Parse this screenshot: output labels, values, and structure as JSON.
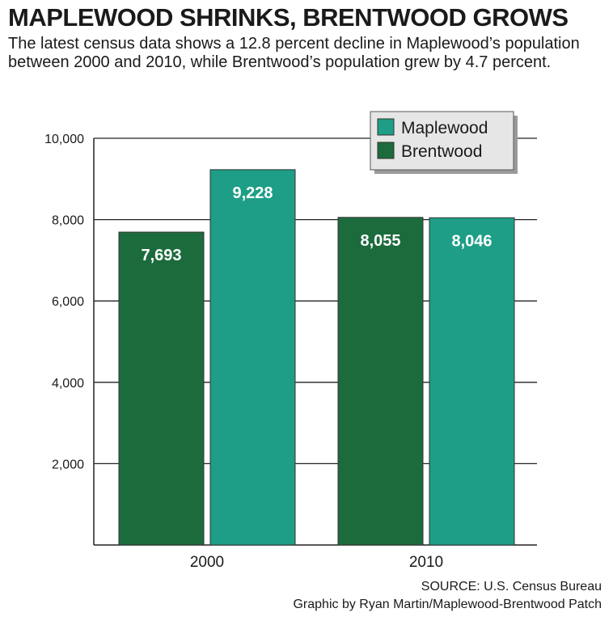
{
  "header": {
    "title": "MAPLEWOOD SHRINKS, BRENTWOOD GROWS",
    "subtitle": "The latest census data shows a 12.8 percent decline in Maplewood’s population between 2000 and 2010, while Brentwood’s population grew by 4.7 percent."
  },
  "footer": {
    "source": "SOURCE: U.S. Census Bureau",
    "credit": "Graphic by Ryan Martin/Maplewood-Brentwood Patch"
  },
  "chart_data": {
    "type": "bar",
    "title": "",
    "xlabel": "",
    "ylabel": "",
    "categories": [
      "2000",
      "2010"
    ],
    "ylim": [
      0,
      10000
    ],
    "yticks": [
      2000,
      4000,
      6000,
      8000,
      10000
    ],
    "ytick_labels": [
      "2,000",
      "4,000",
      "6,000",
      "8,000",
      "10,000"
    ],
    "grid": true,
    "legend_position": "top-right",
    "series": [
      {
        "name": "Brentwood",
        "values": [
          7693,
          8055
        ],
        "labels": [
          "7,693",
          "8,055"
        ],
        "color": "#1c6b3c"
      },
      {
        "name": "Maplewood",
        "values": [
          9228,
          8046
        ],
        "labels": [
          "9,228",
          "8,046"
        ],
        "color": "#1e9e86"
      }
    ],
    "legend_order": [
      "Maplewood",
      "Brentwood"
    ]
  }
}
